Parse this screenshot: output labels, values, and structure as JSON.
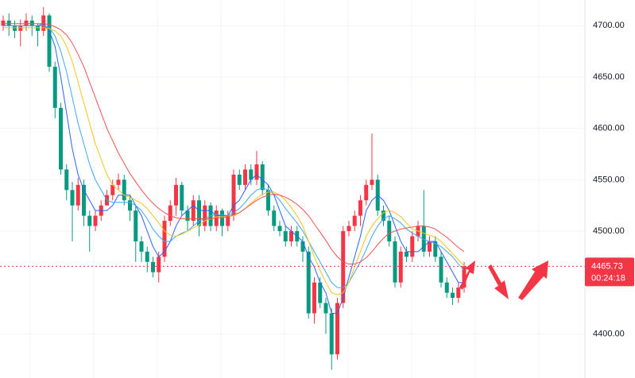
{
  "chart_data": {
    "type": "candlestick",
    "up_color": "#f23645",
    "down_color": "#089981",
    "open": [
      4700,
      4705,
      4700,
      4695,
      4700,
      4705,
      4700,
      4695,
      4710,
      4660,
      4620,
      4560,
      4540,
      4525,
      4545,
      4515,
      4505,
      4515,
      4525,
      4535,
      4545,
      4550,
      4530,
      4520,
      4490,
      4480,
      4470,
      4460,
      4475,
      4510,
      4525,
      4545,
      4520,
      4510,
      4530,
      4505,
      4525,
      4505,
      4520,
      4505,
      4515,
      4555,
      4545,
      4560,
      4550,
      4565,
      4540,
      4520,
      4505,
      4500,
      4490,
      4500,
      4490,
      4480,
      4420,
      4450,
      4430,
      4420,
      4380,
      4430,
      4500,
      4505,
      4515,
      4530,
      4545,
      4550,
      4520,
      4510,
      4490,
      4450,
      4480,
      4475,
      4495,
      4505,
      4480,
      4490,
      4475,
      4450,
      4440,
      4435,
      4445
    ],
    "high": [
      4710,
      4712,
      4705,
      4706,
      4712,
      4710,
      4702,
      4718,
      4712,
      4665,
      4625,
      4565,
      4548,
      4552,
      4550,
      4520,
      4520,
      4530,
      4540,
      4550,
      4556,
      4555,
      4535,
      4525,
      4495,
      4485,
      4475,
      4480,
      4515,
      4530,
      4552,
      4548,
      4525,
      4535,
      4535,
      4530,
      4528,
      4525,
      4522,
      4520,
      4560,
      4560,
      4565,
      4565,
      4578,
      4568,
      4545,
      4525,
      4510,
      4505,
      4505,
      4505,
      4495,
      4485,
      4455,
      4455,
      4435,
      4425,
      4435,
      4505,
      4510,
      4520,
      4535,
      4550,
      4595,
      4555,
      4525,
      4515,
      4495,
      4485,
      4485,
      4500,
      4510,
      4540,
      4495,
      4495,
      4480,
      4455,
      4445,
      4450,
      4470
    ],
    "low": [
      4695,
      4690,
      4688,
      4680,
      4695,
      4690,
      4680,
      4690,
      4655,
      4610,
      4555,
      4530,
      4490,
      4520,
      4505,
      4480,
      4500,
      4510,
      4525,
      4530,
      4540,
      4525,
      4510,
      4470,
      4470,
      4460,
      4455,
      4450,
      4470,
      4505,
      4515,
      4515,
      4500,
      4505,
      4495,
      4500,
      4500,
      4500,
      4495,
      4500,
      4510,
      4540,
      4540,
      4545,
      4545,
      4535,
      4515,
      4500,
      4495,
      4485,
      4485,
      4485,
      4470,
      4415,
      4410,
      4425,
      4400,
      4365,
      4375,
      4425,
      4495,
      4500,
      4505,
      4525,
      4540,
      4515,
      4505,
      4485,
      4445,
      4445,
      4470,
      4470,
      4490,
      4475,
      4475,
      4470,
      4445,
      4435,
      4428,
      4430,
      4440
    ],
    "close": [
      4705,
      4700,
      4695,
      4700,
      4705,
      4700,
      4695,
      4710,
      4660,
      4620,
      4560,
      4540,
      4525,
      4545,
      4515,
      4505,
      4515,
      4525,
      4535,
      4545,
      4550,
      4530,
      4520,
      4490,
      4480,
      4470,
      4460,
      4475,
      4510,
      4525,
      4545,
      4520,
      4510,
      4530,
      4505,
      4525,
      4505,
      4520,
      4505,
      4515,
      4555,
      4545,
      4560,
      4550,
      4565,
      4540,
      4520,
      4505,
      4500,
      4490,
      4500,
      4490,
      4480,
      4420,
      4450,
      4430,
      4420,
      4380,
      4430,
      4500,
      4505,
      4515,
      4530,
      4545,
      4550,
      4520,
      4510,
      4490,
      4450,
      4480,
      4475,
      4495,
      4505,
      4480,
      4490,
      4475,
      4450,
      4440,
      4435,
      4445,
      4465.73
    ],
    "lines": [
      {
        "color": "#2962ff",
        "values": [
          4700,
          4700,
          4700,
          4700,
          4700,
          4700,
          4700,
          4702,
          4695,
          4680,
          4650,
          4615,
          4580,
          4555,
          4540,
          4530,
          4520,
          4520,
          4520,
          4525,
          4535,
          4535,
          4535,
          4525,
          4515,
          4500,
          4485,
          4475,
          4480,
          4490,
          4505,
          4515,
          4520,
          4525,
          4520,
          4520,
          4520,
          4515,
          4515,
          4515,
          4525,
          4530,
          4540,
          4550,
          4555,
          4550,
          4545,
          4535,
          4520,
          4505,
          4500,
          4495,
          4490,
          4475,
          4465,
          4450,
          4440,
          4420,
          4420,
          4435,
          4455,
          4475,
          4495,
          4520,
          4530,
          4535,
          4530,
          4520,
          4505,
          4490,
          4480,
          4480,
          4480,
          4485,
          4490,
          4490,
          4480,
          4470,
          4460,
          4450,
          4450
        ]
      },
      {
        "color": "#42a5f5",
        "values": [
          4700,
          4700,
          4700,
          4700,
          4700,
          4700,
          4700,
          4700,
          4698,
          4690,
          4675,
          4655,
          4630,
          4605,
          4585,
          4565,
          4550,
          4540,
          4530,
          4528,
          4528,
          4528,
          4528,
          4525,
          4520,
          4512,
          4502,
          4495,
          4490,
          4490,
          4495,
          4498,
          4500,
          4505,
          4510,
          4512,
          4515,
          4516,
          4516,
          4515,
          4518,
          4522,
          4528,
          4535,
          4540,
          4542,
          4540,
          4536,
          4530,
          4522,
          4515,
          4508,
          4500,
          4490,
          4480,
          4470,
          4460,
          4450,
          4445,
          4445,
          4450,
          4460,
          4470,
          4482,
          4495,
          4505,
          4512,
          4515,
          4512,
          4508,
          4502,
          4498,
          4495,
          4492,
          4490,
          4488,
          4485,
          4480,
          4475,
          4468,
          4462
        ]
      },
      {
        "color": "#f5c518",
        "values": [
          4698,
          4698,
          4698,
          4698,
          4698,
          4698,
          4698,
          4698,
          4697,
          4695,
          4690,
          4680,
          4665,
          4645,
          4625,
          4605,
          4585,
          4570,
          4555,
          4545,
          4540,
          4535,
          4533,
          4530,
          4527,
          4522,
          4515,
          4508,
          4500,
          4496,
          4495,
          4497,
          4500,
          4503,
          4506,
          4510,
          4512,
          4514,
          4514,
          4514,
          4515,
          4518,
          4522,
          4527,
          4532,
          4536,
          4538,
          4538,
          4535,
          4530,
          4523,
          4515,
          4505,
          4490,
          4475,
          4462,
          4450,
          4440,
          4438,
          4440,
          4450,
          4465,
          4480,
          4495,
          4505,
          4512,
          4518,
          4520,
          4518,
          4514,
          4508,
          4502,
          4500,
          4498,
          4496,
          4494,
          4490,
          4484,
          4478,
          4472,
          4466
        ]
      },
      {
        "color": "#ef5350",
        "values": [
          4702,
          4702,
          4702,
          4702,
          4702,
          4702,
          4702,
          4702,
          4701,
          4699,
          4696,
          4691,
          4683,
          4672,
          4660,
          4645,
          4630,
          4615,
          4600,
          4588,
          4576,
          4566,
          4556,
          4548,
          4540,
          4533,
          4527,
          4522,
          4518,
          4515,
          4513,
          4512,
          4512,
          4512,
          4512,
          4512,
          4512,
          4513,
          4513,
          4514,
          4516,
          4518,
          4522,
          4526,
          4530,
          4533,
          4535,
          4536,
          4535,
          4533,
          4530,
          4526,
          4521,
          4515,
          4507,
          4499,
          4491,
          4482,
          4475,
          4470,
          4468,
          4468,
          4470,
          4474,
          4480,
          4487,
          4493,
          4498,
          4500,
          4502,
          4503,
          4504,
          4505,
          4505,
          4504,
          4502,
          4498,
          4494,
          4489,
          4484,
          4480
        ]
      }
    ],
    "ylim": [
      4357,
      4725
    ],
    "yticks": [
      {
        "value": 4400,
        "label": "4400.00"
      },
      {
        "value": 4500,
        "label": "4500.00"
      },
      {
        "value": 4550,
        "label": "4550.00"
      },
      {
        "value": 4600,
        "label": "4600.00"
      },
      {
        "value": 4650,
        "label": "4650.00"
      },
      {
        "value": 4700,
        "label": "4700.00"
      }
    ],
    "grid": true,
    "last_price": 4465.73,
    "countdown": "00:24:18"
  }
}
